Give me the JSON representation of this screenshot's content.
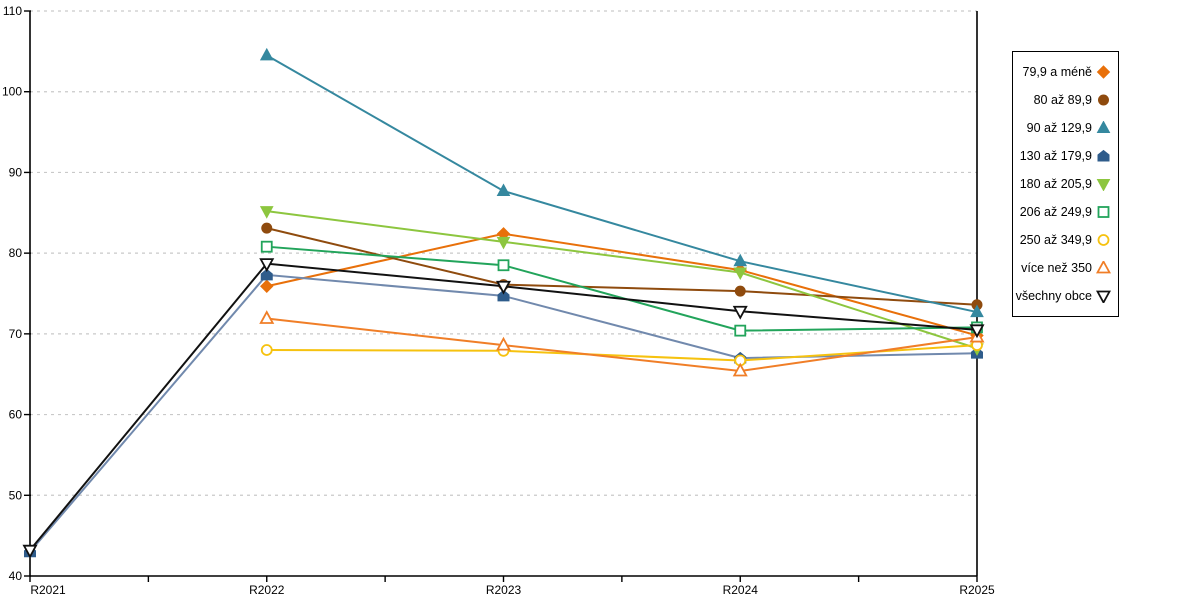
{
  "chart_data": {
    "type": "line",
    "title": "",
    "xlabel": "",
    "ylabel": "",
    "categories": [
      "R2021",
      "R2022",
      "R2023",
      "R2024",
      "R2025"
    ],
    "ylim": [
      40,
      110
    ],
    "ytick_step": 10,
    "grid": "horizontal-dashed",
    "legend_position": "right-outside",
    "series": [
      {
        "name": "79,9 a méně",
        "color": "#E8700A",
        "marker": "diamond",
        "marker_fill": "solid",
        "values": [
          null,
          75.9,
          82.4,
          77.9,
          69.8
        ]
      },
      {
        "name": "80 až 89,9",
        "color": "#8F4B0E",
        "marker": "circle",
        "marker_fill": "solid",
        "values": [
          null,
          83.1,
          76.1,
          75.3,
          73.6
        ]
      },
      {
        "name": "90 až 129,9",
        "color": "#35889F",
        "marker": "triangle-up",
        "marker_fill": "solid",
        "values": [
          null,
          104.5,
          87.7,
          79.0,
          72.7
        ]
      },
      {
        "name": "130 až 179,9",
        "color": "#7189AD",
        "marker_color": "#2F5C8B",
        "marker": "house",
        "marker_fill": "solid",
        "values": [
          43.0,
          77.3,
          74.7,
          67.0,
          67.6
        ]
      },
      {
        "name": "180 až 205,9",
        "color": "#8DC63F",
        "marker": "triangle-down",
        "marker_fill": "solid",
        "values": [
          null,
          85.2,
          81.4,
          77.6,
          68.2
        ]
      },
      {
        "name": "206 až 249,9",
        "color": "#22A45B",
        "marker": "square",
        "marker_fill": "open",
        "values": [
          null,
          80.8,
          78.5,
          70.4,
          70.8
        ]
      },
      {
        "name": "250 až 349,9",
        "color": "#F6C20F",
        "marker": "circle",
        "marker_fill": "open",
        "values": [
          null,
          68.0,
          67.9,
          66.7,
          68.6
        ]
      },
      {
        "name": "více než 350",
        "color": "#F07E27",
        "marker": "triangle-up",
        "marker_fill": "open",
        "values": [
          null,
          71.9,
          68.6,
          65.4,
          69.6
        ]
      },
      {
        "name": "všechny obce",
        "color": "#111111",
        "marker": "triangle-down",
        "marker_fill": "open",
        "values": [
          43.2,
          78.7,
          75.9,
          72.8,
          70.5
        ]
      }
    ]
  },
  "axes": {
    "y_tick_labels": [
      "110",
      "100",
      "90",
      "80",
      "70",
      "60",
      "50",
      "40"
    ],
    "x_tick_labels": [
      "R2021",
      "R2022",
      "R2023",
      "R2024",
      "R2025"
    ]
  }
}
